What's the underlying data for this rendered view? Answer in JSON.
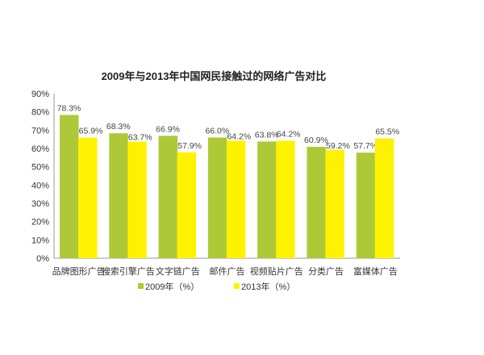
{
  "chart_data": {
    "type": "bar",
    "title": "2009年与2013年中国网民接触过的网络广告对比",
    "categories": [
      "品牌图形广告",
      "搜索引擎广告",
      "文字链广告",
      "邮件广告",
      "视频贴片广告",
      "分类广告",
      "富媒体广告"
    ],
    "series": [
      {
        "name": "2009年（%）",
        "values": [
          78.3,
          68.3,
          66.9,
          66.0,
          63.8,
          60.9,
          57.7
        ],
        "labels": [
          "78.3%",
          "68.3%",
          "66.9%",
          "66.0%",
          "63.8%",
          "60.9%",
          "57.7%"
        ],
        "color": "#adc937"
      },
      {
        "name": "2013年（%）",
        "values": [
          65.9,
          63.7,
          57.9,
          64.2,
          64.2,
          59.2,
          65.5
        ],
        "labels": [
          "65.9%",
          "63.7%",
          "57.9%",
          "64.2%",
          "64.2%",
          "59.2%",
          "65.5%"
        ],
        "color": "#fff200"
      }
    ],
    "ylim": [
      0,
      90
    ],
    "yticks": [
      "0%",
      "10%",
      "20%",
      "30%",
      "40%",
      "50%",
      "60%",
      "70%",
      "80%",
      "90%"
    ],
    "grid": false,
    "legend": "bottom"
  }
}
